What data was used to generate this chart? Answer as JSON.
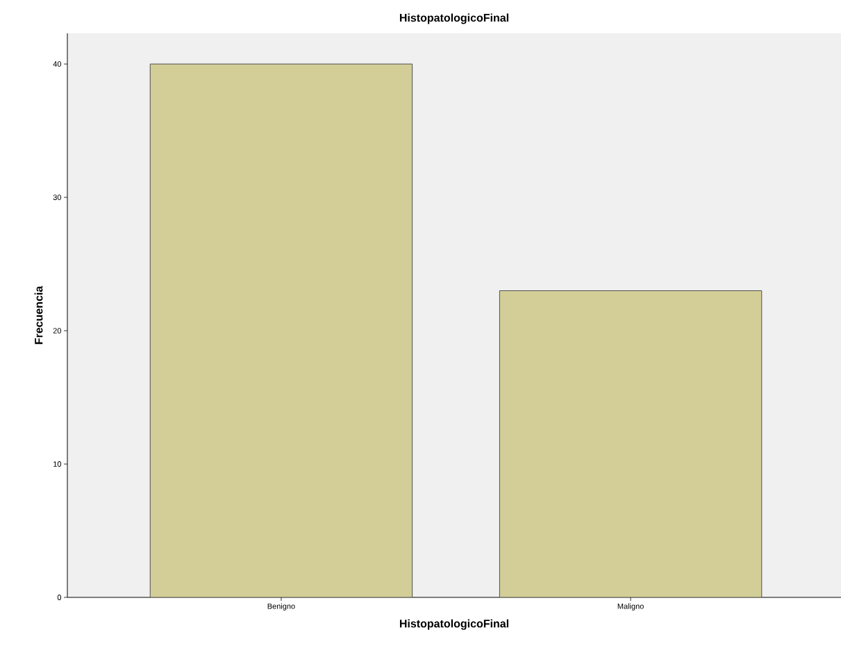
{
  "chart_data": {
    "type": "bar",
    "title": "HistopatologicoFinal",
    "xlabel": "HistopatologicoFinal",
    "ylabel": "Frecuencia",
    "categories": [
      "Benigno",
      "Maligno"
    ],
    "values": [
      40,
      23
    ],
    "color": "#d3ce97",
    "ylim": [
      0,
      42.3
    ],
    "yticks": [
      0,
      10,
      20,
      30,
      40
    ]
  }
}
